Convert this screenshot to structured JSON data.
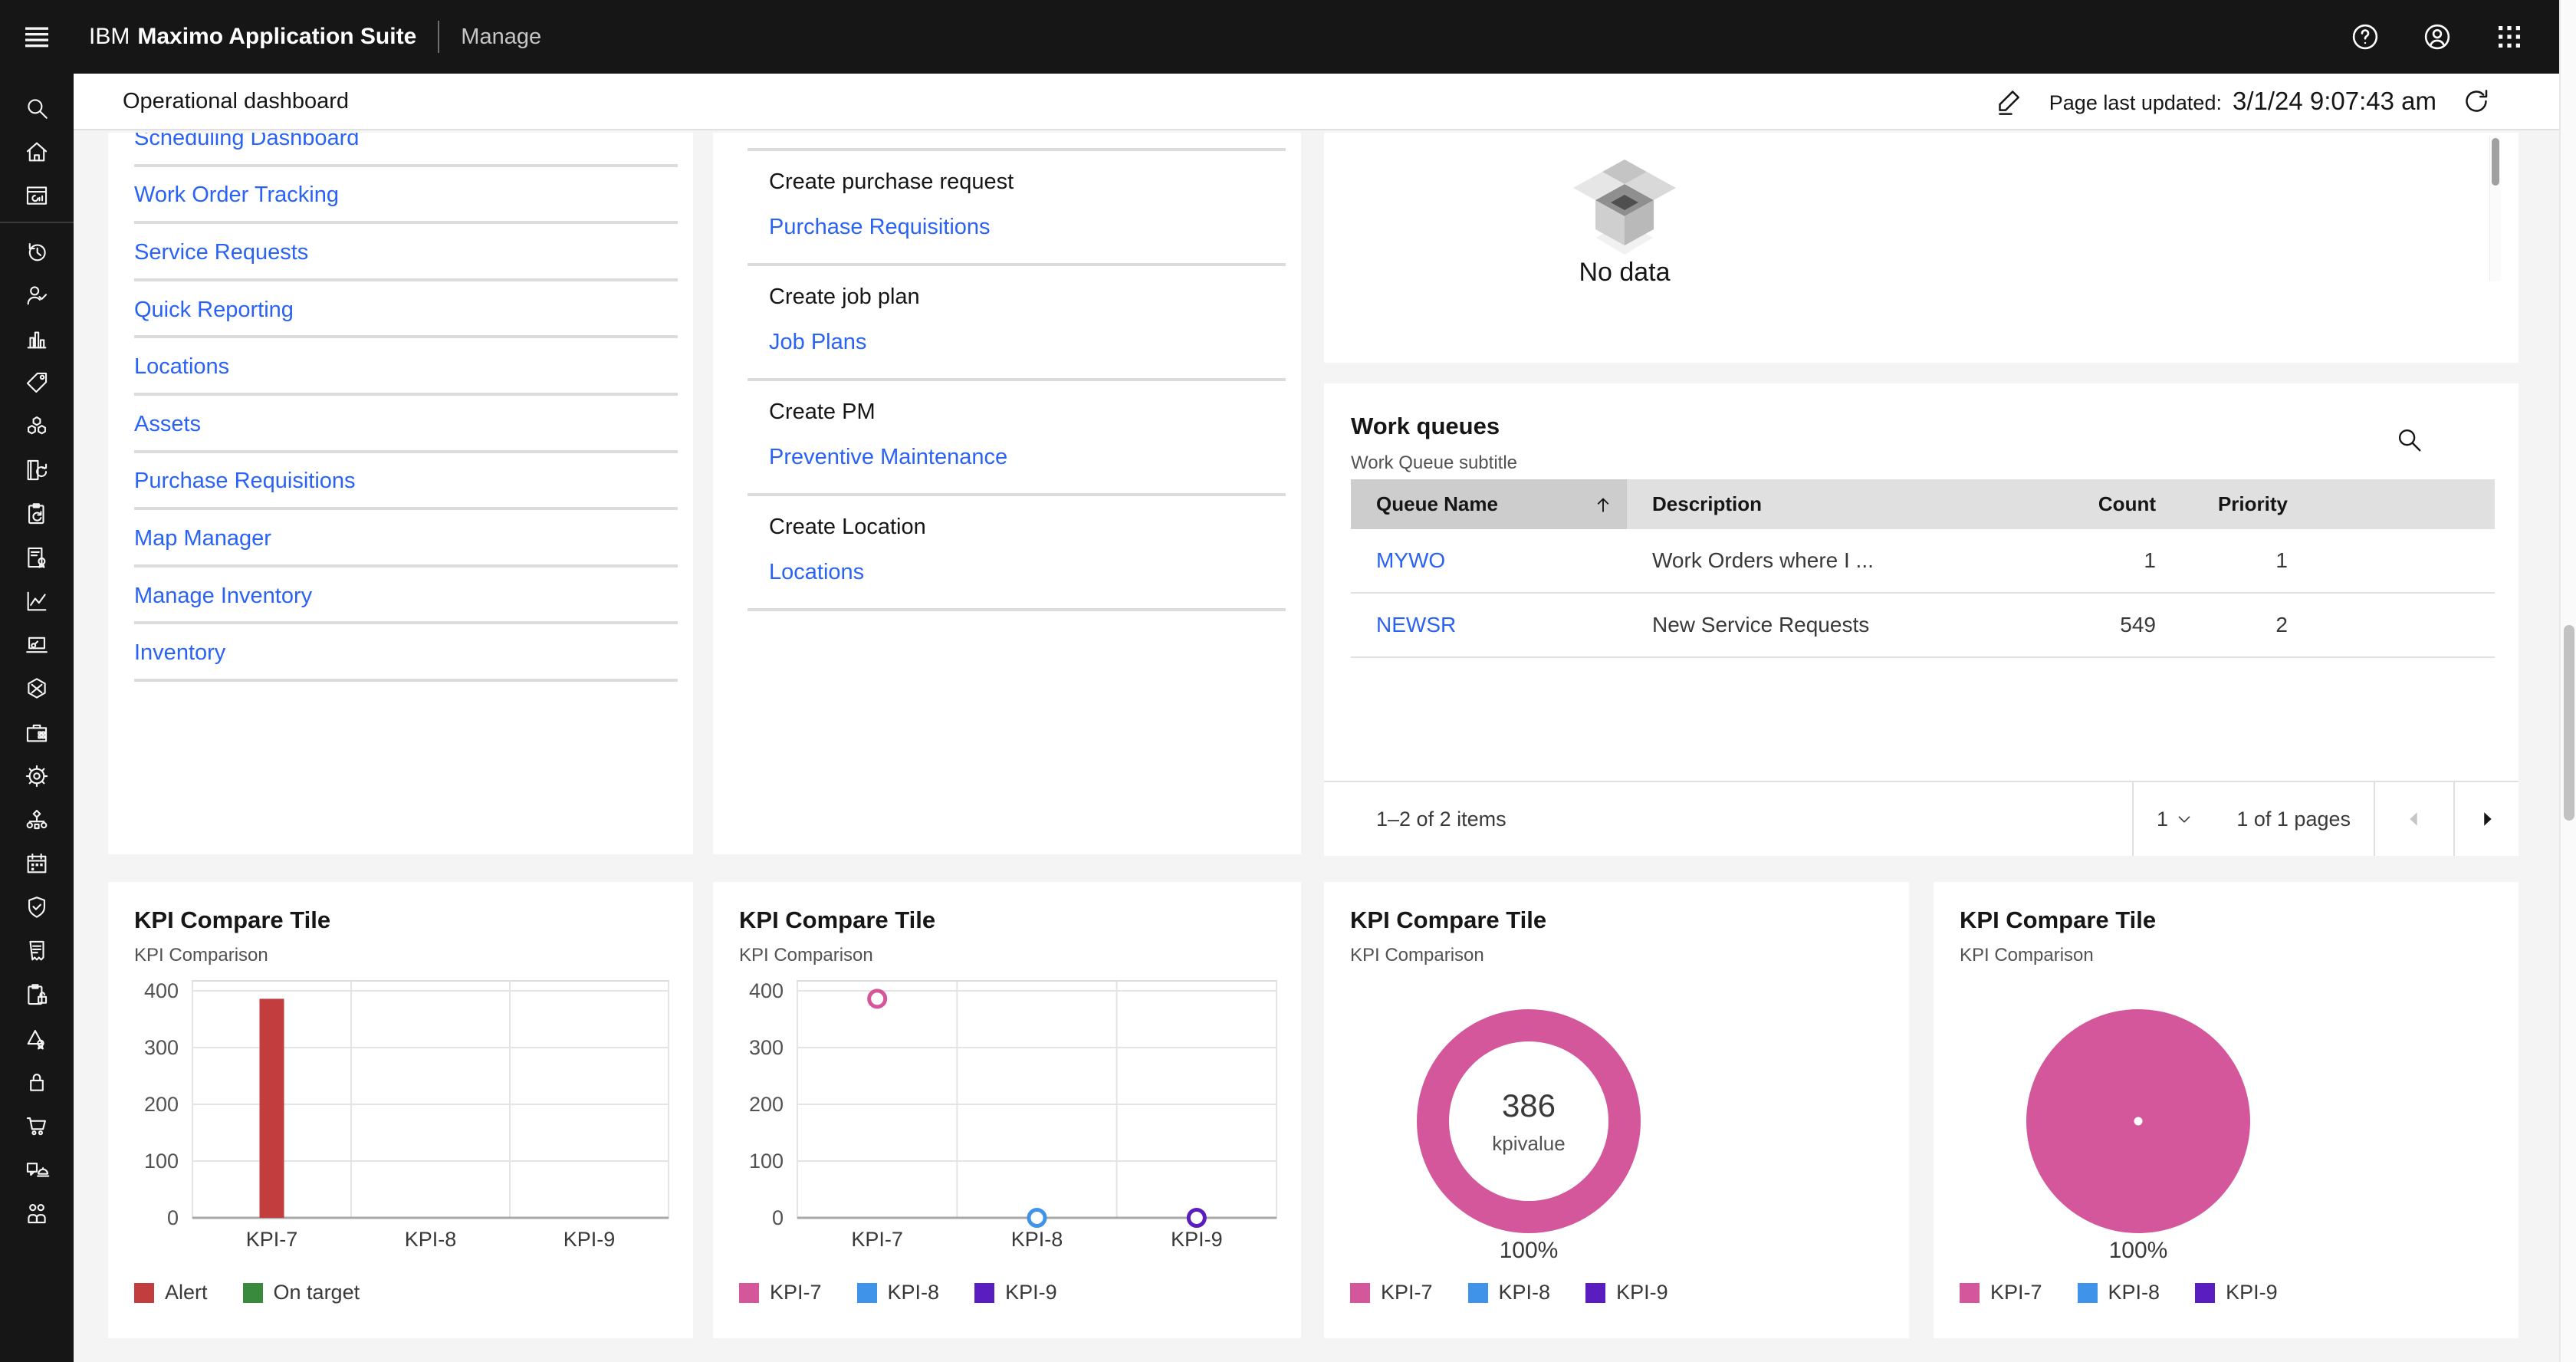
{
  "header": {
    "brand_prefix": "IBM",
    "brand_name": "Maximo Application Suite",
    "app_name": "Manage",
    "icons": [
      "help-icon",
      "user-avatar-icon",
      "app-switcher-icon"
    ]
  },
  "toolbar": {
    "title": "Operational dashboard",
    "updated_label": "Page last updated:",
    "updated_value": "3/1/24 9:07:43 am",
    "icons": [
      "edit-icon",
      "refresh-icon"
    ]
  },
  "sidebar": {
    "items": [
      "search",
      "home",
      "dashboard",
      "divider",
      "recent",
      "user-follow",
      "analytics",
      "tag",
      "assets",
      "book-sync",
      "clipboard-sync",
      "certificate",
      "trend-chart",
      "devices",
      "inventory-hex",
      "toolbox",
      "settings",
      "data-flow",
      "calendar",
      "security-shield",
      "receipt",
      "clipboard-lock",
      "quality-award",
      "lock",
      "cart",
      "service-bell",
      "people"
    ]
  },
  "quick_links": {
    "items": [
      "Scheduling Dashboard",
      "Work Order Tracking",
      "Service Requests",
      "Quick Reporting",
      "Locations",
      "Assets",
      "Purchase Requisitions",
      "Map Manager",
      "Manage Inventory",
      "Inventory"
    ]
  },
  "create_actions": {
    "items": [
      {
        "title": "Create purchase request",
        "link": "Purchase Requisitions"
      },
      {
        "title": "Create job plan",
        "link": "Job Plans"
      },
      {
        "title": "Create PM",
        "link": "Preventive Maintenance"
      },
      {
        "title": "Create Location",
        "link": "Locations"
      }
    ]
  },
  "no_data_card": {
    "message": "No data"
  },
  "work_queues": {
    "title": "Work queues",
    "subtitle": "Work Queue subtitle",
    "columns": [
      "Queue Name",
      "Description",
      "Count",
      "Priority"
    ],
    "sorted_column": "Queue Name",
    "rows": [
      {
        "queue": "MYWO",
        "description": "Work Orders where I ...",
        "count": "1",
        "priority": "1"
      },
      {
        "queue": "NEWSR",
        "description": "New Service Requests",
        "count": "549",
        "priority": "2"
      }
    ],
    "pagination": {
      "range": "1–2 of 2 items",
      "page": "1",
      "pages": "1 of 1 pages"
    }
  },
  "colors": {
    "link_blue": "#2962f5",
    "header_bg": "#161616",
    "alert_red": "#c23e3e",
    "on_target_green": "#3a8a3e",
    "kpi7_magenta": "#d4579c",
    "kpi8_blue": "#3f93e8",
    "kpi9_purple": "#5a1ec0"
  },
  "chart_data": [
    {
      "tile": 0,
      "type": "bar",
      "title": "KPI Compare Tile",
      "subtitle": "KPI Comparison",
      "categories": [
        "KPI-7",
        "KPI-8",
        "KPI-9"
      ],
      "series": [
        {
          "name": "Alert",
          "color": "#c23e3e",
          "values": [
            386,
            0,
            0
          ]
        },
        {
          "name": "On target",
          "color": "#3a8a3e",
          "values": [
            0,
            0,
            0
          ]
        }
      ],
      "ylim": [
        0,
        400
      ],
      "yticks": [
        0,
        100,
        200,
        300,
        400
      ],
      "grid": true,
      "legend_position": "bottom"
    },
    {
      "tile": 1,
      "type": "scatter",
      "title": "KPI Compare Tile",
      "subtitle": "KPI Comparison",
      "categories": [
        "KPI-7",
        "KPI-8",
        "KPI-9"
      ],
      "series": [
        {
          "name": "KPI-7",
          "color": "#d4579c",
          "points": [
            {
              "x": "KPI-7",
              "y": 386
            }
          ]
        },
        {
          "name": "KPI-8",
          "color": "#3f93e8",
          "points": [
            {
              "x": "KPI-8",
              "y": 0
            }
          ]
        },
        {
          "name": "KPI-9",
          "color": "#5a1ec0",
          "points": [
            {
              "x": "KPI-9",
              "y": 0
            }
          ]
        }
      ],
      "ylim": [
        0,
        400
      ],
      "yticks": [
        0,
        100,
        200,
        300,
        400
      ],
      "grid": true,
      "legend_position": "bottom"
    },
    {
      "tile": 2,
      "type": "donut",
      "title": "KPI Compare Tile",
      "subtitle": "KPI Comparison",
      "center_value": "386",
      "center_label": "kpivalue",
      "footer_label": "100%",
      "slices": [
        {
          "name": "KPI-7",
          "value": 100,
          "color": "#d4579c"
        },
        {
          "name": "KPI-8",
          "value": 0,
          "color": "#3f93e8"
        },
        {
          "name": "KPI-9",
          "value": 0,
          "color": "#5a1ec0"
        }
      ],
      "legend_position": "bottom"
    },
    {
      "tile": 3,
      "type": "pie",
      "title": "KPI Compare Tile",
      "subtitle": "KPI Comparison",
      "footer_label": "100%",
      "slices": [
        {
          "name": "KPI-7",
          "value": 100,
          "color": "#d4579c"
        },
        {
          "name": "KPI-8",
          "value": 0,
          "color": "#3f93e8"
        },
        {
          "name": "KPI-9",
          "value": 0,
          "color": "#5a1ec0"
        }
      ],
      "legend_position": "bottom"
    }
  ]
}
